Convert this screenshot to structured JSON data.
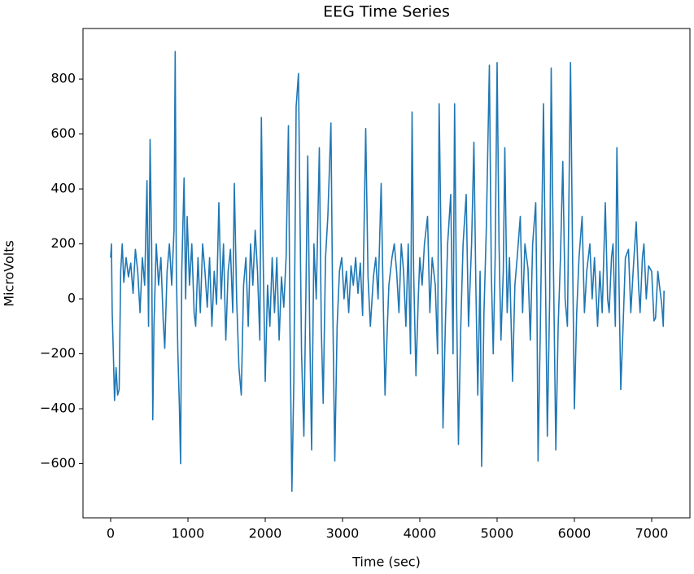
{
  "chart_data": {
    "type": "line",
    "title": "EEG Time Series",
    "x_label": "Time (sec)",
    "y_label": "MicroVolts",
    "xlim": [
      -358,
      7495
    ],
    "ylim": [
      -797,
      984
    ],
    "xticks": [
      0,
      1000,
      2000,
      3000,
      4000,
      5000,
      6000,
      7000
    ],
    "yticks": [
      {
        "value": -600,
        "label": "−600"
      },
      {
        "value": -400,
        "label": "−400"
      },
      {
        "value": -200,
        "label": "−200"
      },
      0,
      200,
      400,
      600,
      800
    ],
    "grid": false,
    "x": [
      0,
      10,
      20,
      35,
      50,
      70,
      90,
      110,
      130,
      150,
      170,
      200,
      230,
      260,
      290,
      320,
      350,
      380,
      410,
      440,
      470,
      490,
      510,
      530,
      545,
      560,
      590,
      620,
      650,
      680,
      700,
      730,
      760,
      790,
      820,
      835,
      850,
      870,
      890,
      905,
      920,
      950,
      970,
      990,
      1020,
      1050,
      1080,
      1100,
      1130,
      1160,
      1190,
      1220,
      1250,
      1280,
      1310,
      1340,
      1370,
      1400,
      1430,
      1460,
      1490,
      1520,
      1550,
      1580,
      1600,
      1630,
      1660,
      1690,
      1720,
      1750,
      1780,
      1810,
      1840,
      1870,
      1900,
      1930,
      1950,
      1970,
      2000,
      2030,
      2060,
      2090,
      2120,
      2150,
      2180,
      2210,
      2240,
      2270,
      2300,
      2320,
      2345,
      2370,
      2400,
      2430,
      2450,
      2470,
      2500,
      2530,
      2550,
      2575,
      2600,
      2630,
      2660,
      2700,
      2725,
      2750,
      2780,
      2810,
      2850,
      2870,
      2900,
      2930,
      2960,
      2990,
      3020,
      3050,
      3080,
      3110,
      3140,
      3170,
      3200,
      3230,
      3260,
      3300,
      3330,
      3360,
      3400,
      3430,
      3460,
      3500,
      3520,
      3550,
      3580,
      3600,
      3640,
      3670,
      3700,
      3730,
      3760,
      3790,
      3820,
      3850,
      3880,
      3900,
      3920,
      3950,
      3980,
      4000,
      4030,
      4060,
      4100,
      4130,
      4160,
      4200,
      4230,
      4250,
      4280,
      4300,
      4330,
      4360,
      4400,
      4430,
      4450,
      4475,
      4500,
      4530,
      4560,
      4600,
      4630,
      4670,
      4700,
      4725,
      4750,
      4780,
      4800,
      4830,
      4860,
      4900,
      4925,
      4950,
      4975,
      5000,
      5025,
      5050,
      5080,
      5100,
      5130,
      5160,
      5200,
      5230,
      5260,
      5300,
      5330,
      5360,
      5400,
      5430,
      5460,
      5500,
      5515,
      5530,
      5560,
      5600,
      5625,
      5650,
      5680,
      5700,
      5730,
      5760,
      5790,
      5820,
      5850,
      5880,
      5910,
      5950,
      5975,
      6000,
      6030,
      6060,
      6100,
      6130,
      6160,
      6200,
      6230,
      6260,
      6300,
      6330,
      6360,
      6400,
      6430,
      6450,
      6480,
      6500,
      6530,
      6550,
      6575,
      6600,
      6630,
      6660,
      6700,
      6730,
      6760,
      6800,
      6830,
      6850,
      6880,
      6900,
      6930,
      6960,
      7000,
      7030,
      7050,
      7080,
      7100,
      7130,
      7150,
      7160
    ],
    "series": [
      {
        "name": "EEG",
        "color": "#1f77b4",
        "values": [
          150,
          200,
          -50,
          -200,
          -370,
          -250,
          -350,
          -330,
          100,
          200,
          60,
          150,
          80,
          130,
          20,
          180,
          100,
          -50,
          150,
          50,
          430,
          -100,
          580,
          200,
          -440,
          -100,
          200,
          50,
          150,
          -80,
          -180,
          100,
          200,
          50,
          250,
          900,
          100,
          -200,
          -400,
          -600,
          100,
          440,
          0,
          300,
          50,
          200,
          -50,
          -100,
          150,
          -50,
          200,
          100,
          -30,
          150,
          -100,
          100,
          -20,
          350,
          0,
          200,
          -150,
          100,
          180,
          -50,
          420,
          0,
          -250,
          -350,
          50,
          150,
          -100,
          200,
          50,
          250,
          100,
          -150,
          660,
          200,
          -300,
          50,
          -100,
          150,
          -50,
          150,
          -150,
          80,
          -30,
          150,
          630,
          -100,
          -700,
          -300,
          700,
          820,
          300,
          -200,
          -500,
          100,
          520,
          -100,
          -550,
          200,
          0,
          550,
          -100,
          -380,
          150,
          300,
          640,
          50,
          -590,
          -100,
          100,
          150,
          0,
          100,
          -50,
          120,
          50,
          150,
          20,
          130,
          -60,
          620,
          80,
          -100,
          80,
          150,
          0,
          420,
          100,
          -350,
          -100,
          50,
          150,
          200,
          100,
          -50,
          200,
          100,
          -100,
          200,
          -200,
          680,
          100,
          -280,
          0,
          150,
          50,
          200,
          300,
          -50,
          150,
          50,
          -200,
          710,
          100,
          -470,
          -100,
          200,
          380,
          -200,
          710,
          0,
          -530,
          -100,
          200,
          380,
          -100,
          200,
          570,
          50,
          -350,
          100,
          -610,
          -50,
          250,
          850,
          100,
          -200,
          150,
          860,
          200,
          -150,
          100,
          550,
          -50,
          150,
          -300,
          50,
          150,
          300,
          -50,
          200,
          110,
          -150,
          200,
          350,
          0,
          -590,
          -100,
          710,
          100,
          -500,
          0,
          840,
          100,
          -550,
          -100,
          150,
          500,
          0,
          -100,
          860,
          200,
          -400,
          -50,
          150,
          300,
          -50,
          100,
          200,
          0,
          150,
          -100,
          100,
          -50,
          350,
          0,
          -50,
          150,
          200,
          -100,
          550,
          100,
          -330,
          -100,
          150,
          180,
          -50,
          100,
          280,
          50,
          -50,
          150,
          200,
          0,
          120,
          100,
          -80,
          -70,
          100,
          50,
          -20,
          -100,
          30
        ]
      }
    ]
  }
}
